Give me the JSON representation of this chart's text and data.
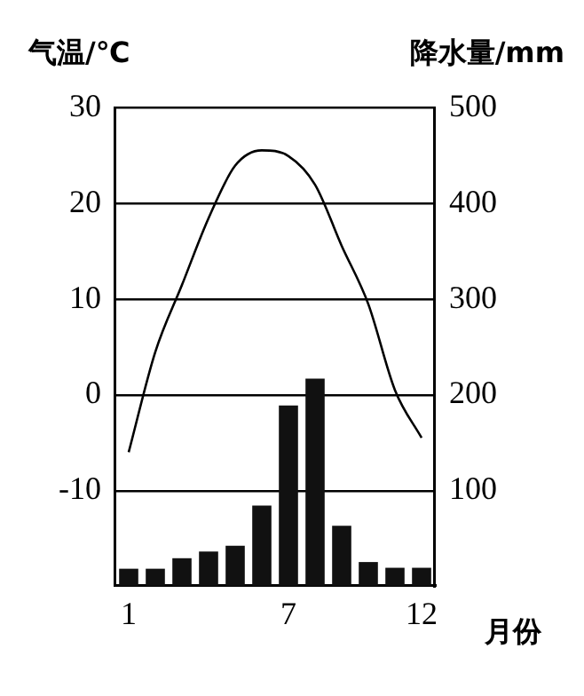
{
  "chart_data": {
    "type": "bar",
    "xlabel": "月份",
    "ylabel": "气温/℃",
    "y2label": "降水量/mm",
    "categories": [
      "1",
      null,
      null,
      null,
      null,
      null,
      "7",
      null,
      null,
      null,
      null,
      "12"
    ],
    "series": [
      {
        "axis": "y2",
        "color": "#111111",
        "values": [
          18,
          18,
          29,
          36,
          42,
          84,
          189,
          217,
          63,
          25,
          19,
          19
        ]
      },
      {
        "type": "line",
        "axis": "y",
        "color": "#000000",
        "values": [
          -6,
          4.5,
          11.5,
          18.5,
          24,
          25.6,
          25,
          22,
          15.6,
          9.5,
          0.5,
          -4.5
        ]
      }
    ],
    "ylim": [
      -20,
      30
    ],
    "yticks": [
      -10,
      0,
      10,
      20,
      30
    ],
    "y2lim": [
      0,
      500
    ],
    "y2ticks": [
      100,
      200,
      300,
      400,
      500
    ],
    "grid": "y",
    "legend": false,
    "marker": "none",
    "line_style": "solid"
  }
}
